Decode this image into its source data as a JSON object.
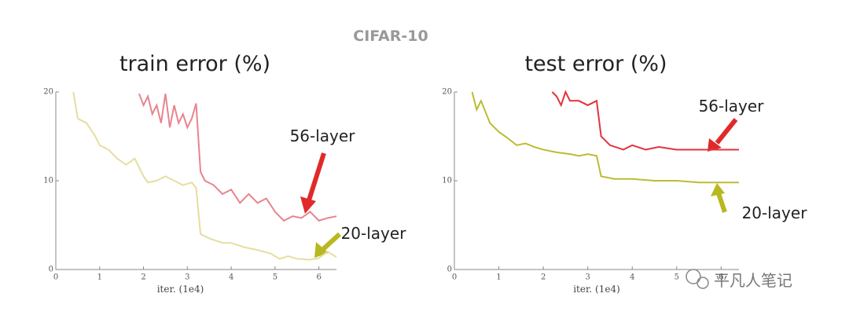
{
  "title": "CIFAR-10",
  "watermark": "平凡人笔记",
  "chart_data": [
    {
      "type": "line",
      "title": "train error (%)",
      "x_label": "iter. (1e4)",
      "xlim": [
        0,
        6.4
      ],
      "xticks": [
        0,
        1,
        2,
        3,
        4,
        5,
        6
      ],
      "ylim": [
        0,
        20
      ],
      "yticks": [
        0,
        10,
        20
      ],
      "series": [
        {
          "name": "56-layer",
          "color": "#e8848e",
          "x": [
            1.9,
            2.0,
            2.1,
            2.2,
            2.3,
            2.4,
            2.5,
            2.6,
            2.7,
            2.8,
            2.9,
            3.0,
            3.1,
            3.2,
            3.3,
            3.4,
            3.6,
            3.8,
            4.0,
            4.2,
            4.4,
            4.6,
            4.8,
            5.0,
            5.2,
            5.4,
            5.6,
            5.8,
            6.0,
            6.2,
            6.4
          ],
          "values": [
            19.8,
            18.5,
            19.5,
            17.5,
            18.5,
            16.5,
            19.8,
            16,
            18.5,
            16.5,
            17.5,
            16,
            17,
            18.7,
            11,
            10,
            9.5,
            8.5,
            9,
            7.5,
            8.5,
            7.5,
            8,
            6.5,
            5.5,
            6,
            5.8,
            6.5,
            5.5,
            5.8,
            6
          ]
        },
        {
          "name": "20-layer",
          "color": "#e6dea0",
          "x": [
            0.4,
            0.5,
            0.7,
            0.9,
            1.0,
            1.2,
            1.4,
            1.6,
            1.8,
            2.0,
            2.1,
            2.3,
            2.5,
            2.7,
            2.9,
            3.1,
            3.2,
            3.3,
            3.5,
            3.8,
            4.0,
            4.3,
            4.6,
            4.9,
            5.1,
            5.3,
            5.5,
            5.8,
            6.0,
            6.2,
            6.4
          ],
          "values": [
            20,
            17,
            16.5,
            15,
            14,
            13.5,
            12.5,
            11.8,
            12.5,
            10.5,
            9.8,
            10,
            10.5,
            10,
            9.5,
            9.8,
            9.2,
            4,
            3.5,
            3,
            3,
            2.5,
            2.2,
            1.8,
            1.2,
            1.5,
            1.2,
            1.1,
            1.3,
            2,
            1.4
          ]
        }
      ]
    },
    {
      "type": "line",
      "title": "test error (%)",
      "x_label": "iter. (1e4)",
      "xlim": [
        0,
        6.4
      ],
      "xticks": [
        0,
        1,
        2,
        3,
        4,
        5,
        6
      ],
      "ylim": [
        0,
        20
      ],
      "yticks": [
        0,
        10,
        20
      ],
      "series": [
        {
          "name": "56-layer",
          "color": "#e0343e",
          "x": [
            2.2,
            2.3,
            2.4,
            2.5,
            2.6,
            2.8,
            3.0,
            3.2,
            3.3,
            3.5,
            3.8,
            4.0,
            4.3,
            4.6,
            5.0,
            5.3,
            5.6,
            6.0,
            6.4
          ],
          "values": [
            20,
            19.5,
            18.5,
            20,
            19,
            19,
            18.5,
            19,
            15,
            14,
            13.5,
            14,
            13.5,
            13.8,
            13.5,
            13.5,
            13.5,
            13.5,
            13.5
          ]
        },
        {
          "name": "20-layer",
          "color": "#bcbc34",
          "x": [
            0.4,
            0.5,
            0.6,
            0.8,
            1.0,
            1.2,
            1.4,
            1.6,
            1.8,
            2.0,
            2.3,
            2.6,
            2.8,
            3.0,
            3.2,
            3.3,
            3.6,
            4.0,
            4.5,
            5.0,
            5.5,
            6.0,
            6.4
          ],
          "values": [
            20,
            18,
            19,
            16.5,
            15.5,
            14.8,
            14,
            14.2,
            13.8,
            13.5,
            13.2,
            13,
            12.8,
            13,
            12.8,
            10.5,
            10.2,
            10.2,
            10,
            10,
            9.8,
            9.8,
            9.8
          ]
        }
      ]
    }
  ]
}
